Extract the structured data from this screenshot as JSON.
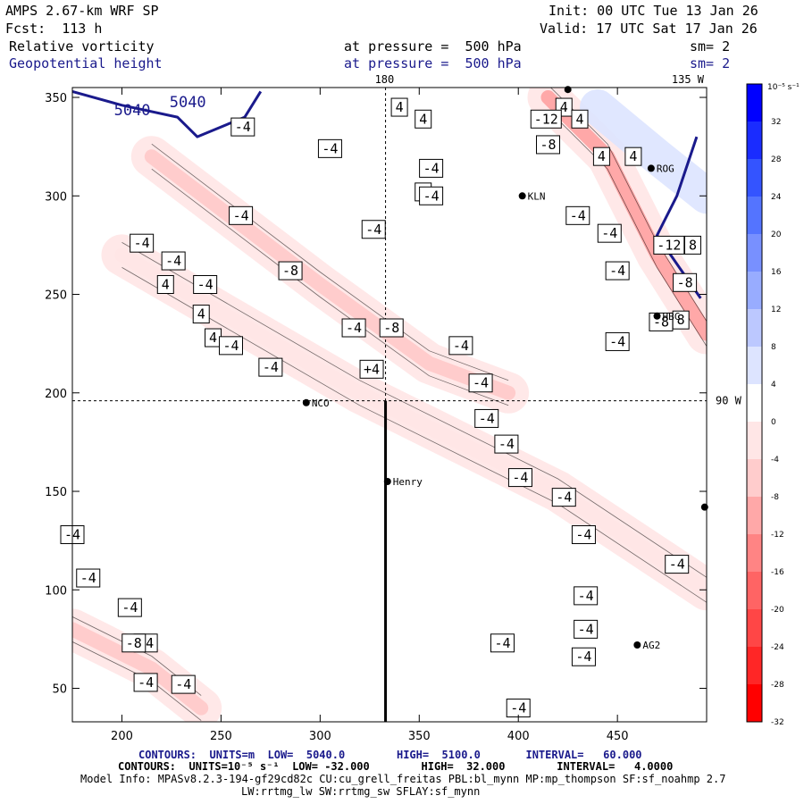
{
  "header": {
    "model": "AMPS 2.67-km WRF SP",
    "forecast": "Fcst:  113 h",
    "init": "Init: 00 UTC Tue 13 Jan 26",
    "valid": "Valid: 17 UTC Sat 17 Jan 26",
    "field1": "Relative vorticity",
    "field2": "Geopotential height",
    "pressure1": "at pressure =  500 hPa",
    "pressure2": "at pressure =  500 hPa",
    "sm1": "sm= 2",
    "sm2": "sm= 2"
  },
  "colors": {
    "positive_max": "#0000e6",
    "negative_max": "#ff0000",
    "height_contour": "#1a1a8c"
  },
  "chart_data": {
    "type": "heatmap",
    "title": "Relative vorticity",
    "xlim": [
      175,
      495
    ],
    "ylim": [
      33,
      355
    ],
    "x_ticks": [
      200,
      250,
      300,
      350,
      400,
      450
    ],
    "y_ticks": [
      50,
      100,
      150,
      200,
      250,
      300,
      350
    ],
    "grid_refs": [
      {
        "label": "180",
        "x": 333
      },
      {
        "label": "135 W",
        "x": 490
      },
      {
        "label": "90 W",
        "y": 196
      }
    ],
    "colorbar": {
      "unit": "10⁻⁵ s⁻¹",
      "levels": [
        32,
        28,
        24,
        20,
        16,
        12,
        8,
        4,
        0,
        -4,
        -8,
        -12,
        -16,
        -20,
        -24,
        -28,
        -32
      ],
      "colors": [
        "#0000ff",
        "#1a2cff",
        "#3454ff",
        "#5474ff",
        "#7890ff",
        "#98acff",
        "#bcc8ff",
        "#dde4ff",
        "#ffffff",
        "#ffe6e6",
        "#ffcccc",
        "#ffa8a8",
        "#ff8484",
        "#ff6464",
        "#ff4646",
        "#ff2626",
        "#ff0000"
      ]
    },
    "vorticity_bands": [
      {
        "points": [
          [
            215,
            320
          ],
          [
            300,
            255
          ],
          [
            355,
            215
          ],
          [
            395,
            200
          ]
        ],
        "value": -8
      },
      {
        "points": [
          [
            200,
            270
          ],
          [
            320,
            200
          ],
          [
            420,
            150
          ],
          [
            495,
            100
          ]
        ],
        "value": -4
      },
      {
        "points": [
          [
            415,
            350
          ],
          [
            445,
            320
          ],
          [
            470,
            270
          ],
          [
            495,
            230
          ]
        ],
        "value": -12
      },
      {
        "points": [
          [
            175,
            80
          ],
          [
            215,
            60
          ],
          [
            240,
            40
          ]
        ],
        "value": -8
      }
    ],
    "height_contours": [
      {
        "label": "5040",
        "points": [
          [
            175,
            353
          ],
          [
            200,
            346
          ],
          [
            228,
            340
          ],
          [
            238,
            330
          ],
          [
            262,
            340
          ],
          [
            270,
            353
          ]
        ]
      },
      {
        "points": [
          [
            490,
            330
          ],
          [
            480,
            300
          ],
          [
            470,
            280
          ],
          [
            492,
            248
          ]
        ]
      }
    ],
    "stations": [
      {
        "name": "NCO",
        "x": 293,
        "y": 195
      },
      {
        "name": "Henry",
        "x": 334,
        "y": 155
      },
      {
        "name": "KLN",
        "x": 402,
        "y": 300
      },
      {
        "name": "ROG",
        "x": 467,
        "y": 314
      },
      {
        "name": "HBC",
        "x": 470,
        "y": 239
      },
      {
        "name": "AG2",
        "x": 460,
        "y": 72
      },
      {
        "name": "",
        "x": 494,
        "y": 142
      },
      {
        "name": "",
        "x": 425,
        "y": 354
      }
    ],
    "contour_labels": [
      {
        "t": "4",
        "x": 340,
        "y": 345
      },
      {
        "t": "4",
        "x": 352,
        "y": 339
      },
      {
        "t": "4",
        "x": 423,
        "y": 345
      },
      {
        "t": "4",
        "x": 431,
        "y": 339
      },
      {
        "t": "4",
        "x": 442,
        "y": 320
      },
      {
        "t": "4",
        "x": 458,
        "y": 320
      },
      {
        "t": "-4",
        "x": 261,
        "y": 335
      },
      {
        "t": "-12",
        "x": 414,
        "y": 339
      },
      {
        "t": "-8",
        "x": 415,
        "y": 326
      },
      {
        "t": "-4",
        "x": 305,
        "y": 324
      },
      {
        "t": "-4",
        "x": 356,
        "y": 314
      },
      {
        "t": "4",
        "x": 352,
        "y": 302
      },
      {
        "t": "-4",
        "x": 356,
        "y": 300
      },
      {
        "t": "-4",
        "x": 260,
        "y": 290
      },
      {
        "t": "-4",
        "x": 327,
        "y": 283
      },
      {
        "t": "-4",
        "x": 210,
        "y": 276
      },
      {
        "t": "-4",
        "x": 226,
        "y": 267
      },
      {
        "t": "-4",
        "x": 242,
        "y": 255
      },
      {
        "t": "-8",
        "x": 285,
        "y": 262
      },
      {
        "t": "4",
        "x": 222,
        "y": 255
      },
      {
        "t": "4",
        "x": 240,
        "y": 240
      },
      {
        "t": "-4",
        "x": 317,
        "y": 233
      },
      {
        "t": "-8",
        "x": 336,
        "y": 233
      },
      {
        "t": "4",
        "x": 246,
        "y": 228
      },
      {
        "t": "-4",
        "x": 255,
        "y": 224
      },
      {
        "t": "-4",
        "x": 371,
        "y": 224
      },
      {
        "t": "-4",
        "x": 275,
        "y": 213
      },
      {
        "t": "+4",
        "x": 326,
        "y": 212
      },
      {
        "t": "-4",
        "x": 381,
        "y": 205
      },
      {
        "t": "-4",
        "x": 446,
        "y": 281
      },
      {
        "t": "-4",
        "x": 450,
        "y": 262
      },
      {
        "t": "-12",
        "x": 476,
        "y": 275
      },
      {
        "t": "8",
        "x": 488,
        "y": 275
      },
      {
        "t": "-8",
        "x": 484,
        "y": 256
      },
      {
        "t": "8",
        "x": 482,
        "y": 237
      },
      {
        "t": "-4",
        "x": 430,
        "y": 290
      },
      {
        "t": "-4",
        "x": 450,
        "y": 226
      },
      {
        "t": "-8",
        "x": 472,
        "y": 236
      },
      {
        "t": "-4",
        "x": 384,
        "y": 187
      },
      {
        "t": "-4",
        "x": 394,
        "y": 174
      },
      {
        "t": "-4",
        "x": 401,
        "y": 157
      },
      {
        "t": "-4",
        "x": 423,
        "y": 147
      },
      {
        "t": "-4",
        "x": 433,
        "y": 128
      },
      {
        "t": "-4",
        "x": 480,
        "y": 113
      },
      {
        "t": "-4",
        "x": 175,
        "y": 128
      },
      {
        "t": "-4",
        "x": 434,
        "y": 97
      },
      {
        "t": "-4",
        "x": 183,
        "y": 106
      },
      {
        "t": "-4",
        "x": 204,
        "y": 91
      },
      {
        "t": "-4",
        "x": 434,
        "y": 80
      },
      {
        "t": "-4",
        "x": 212,
        "y": 73
      },
      {
        "t": "-4",
        "x": 231,
        "y": 52
      },
      {
        "t": "-8",
        "x": 206,
        "y": 73
      },
      {
        "t": "-4",
        "x": 392,
        "y": 73
      },
      {
        "t": "-4",
        "x": 212,
        "y": 53
      },
      {
        "t": "-4",
        "x": 433,
        "y": 66
      },
      {
        "t": "-4",
        "x": 400,
        "y": 40
      }
    ]
  },
  "footer": {
    "line1": "CONTOURS:  UNITS=m  LOW=  5040.0        HIGH=  5100.0       INTERVAL=   60.000",
    "line2": "CONTOURS:  UNITS=10⁻⁵ s⁻¹  LOW= -32.000        HIGH=  32.000        INTERVAL=   4.0000",
    "line3": "Model Info: MPASv8.2.3-194-gf29cd82c CU:cu_grell_freitas PBL:bl_mynn MP:mp_thompson SF:sf_noahmp 2.7",
    "line4": "LW:rrtmg_lw SW:rrtmg_sw SFLAY:sf_mynn"
  }
}
